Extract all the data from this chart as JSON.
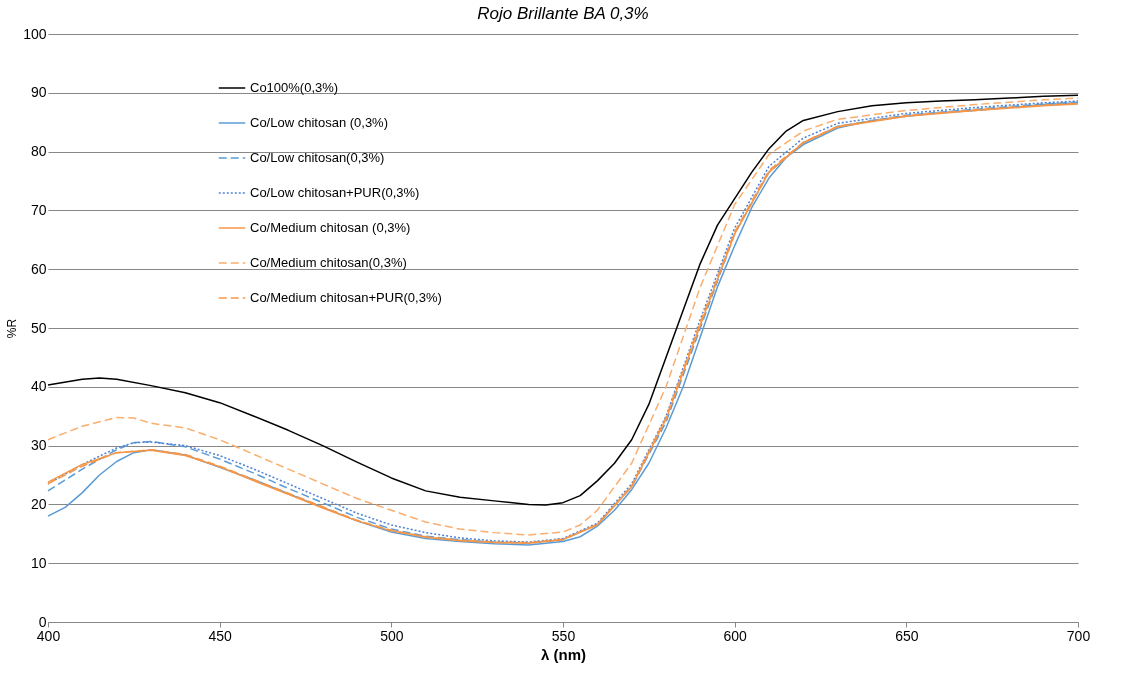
{
  "chart_data": {
    "type": "line",
    "title": "Rojo Brillante BA 0,3%",
    "xlabel": "λ (nm)",
    "ylabel": "%R",
    "xlim": [
      400,
      700
    ],
    "xticks": [
      400,
      450,
      500,
      550,
      600,
      650,
      700
    ],
    "ylim": [
      0,
      100
    ],
    "yticks": [
      0,
      10,
      20,
      30,
      40,
      50,
      60,
      70,
      80,
      90,
      100
    ],
    "grid": "y",
    "legend": "top left",
    "marker": "none",
    "series": [
      {
        "name": "Co100%(0,3%)",
        "color": "#000000",
        "line_style": "solid",
        "x": [
          400,
          410,
          415,
          420,
          430,
          440,
          450,
          460,
          470,
          480,
          490,
          500,
          510,
          520,
          530,
          540,
          545,
          550,
          555,
          560,
          565,
          570,
          575,
          580,
          585,
          590,
          595,
          600,
          605,
          610,
          615,
          620,
          630,
          640,
          650,
          660,
          670,
          680,
          690,
          700
        ],
        "values": [
          40.3,
          41.3,
          41.5,
          41.3,
          40.2,
          39,
          37.3,
          35,
          32.6,
          30,
          27.2,
          24.5,
          22.3,
          21.2,
          20.6,
          20,
          19.9,
          20.3,
          21.5,
          24,
          27,
          31,
          37,
          45,
          53,
          61,
          67.5,
          72,
          76.5,
          80.5,
          83.5,
          85.3,
          86.8,
          87.8,
          88.3,
          88.6,
          88.8,
          89.1,
          89.4,
          89.6
        ]
      },
      {
        "name": "Co/Low chitosan (0,3%)",
        "color": "#5b9bd5",
        "line_style": "solid",
        "x": [
          400,
          405,
          410,
          415,
          420,
          425,
          430,
          440,
          450,
          460,
          470,
          480,
          490,
          500,
          510,
          520,
          530,
          540,
          550,
          555,
          560,
          565,
          570,
          575,
          580,
          585,
          590,
          595,
          600,
          605,
          610,
          615,
          620,
          630,
          640,
          650,
          660,
          670,
          680,
          690,
          700
        ],
        "values": [
          18,
          19.5,
          22,
          25,
          27.3,
          28.8,
          29.3,
          28.4,
          26.3,
          24.2,
          21.8,
          19.5,
          17.2,
          15.3,
          14.2,
          13.7,
          13.3,
          13.1,
          13.7,
          14.5,
          16.3,
          19,
          22.5,
          27,
          33,
          40,
          48.5,
          57,
          64,
          70.5,
          75.5,
          79,
          81.2,
          84,
          85.3,
          86,
          86.6,
          87,
          87.5,
          88,
          88.3
        ]
      },
      {
        "name": "Co/Low chitosan(0,3%)",
        "color": "#5b9bd5",
        "line_style": "dashed",
        "x": [
          400,
          410,
          420,
          425,
          430,
          440,
          450,
          460,
          470,
          480,
          490,
          500,
          510,
          520,
          530,
          540,
          550,
          560,
          570,
          580,
          590,
          600,
          610,
          620,
          630,
          650,
          670,
          690,
          700
        ],
        "values": [
          22.3,
          26,
          29.3,
          30.5,
          30.7,
          29.8,
          27.7,
          25.3,
          22.7,
          20.3,
          17.8,
          15.8,
          14.6,
          14,
          13.6,
          13.4,
          14,
          16.6,
          23,
          34,
          50,
          66,
          76.5,
          81.5,
          84.3,
          86.2,
          87.2,
          88.1,
          88.4
        ]
      },
      {
        "name": "Co/Low chitosan+PUR(0,3%)",
        "color": "#4f81d4",
        "line_style": "dotted",
        "x": [
          400,
          410,
          420,
          425,
          430,
          440,
          450,
          460,
          470,
          480,
          490,
          500,
          510,
          520,
          530,
          540,
          550,
          560,
          570,
          580,
          590,
          600,
          610,
          620,
          630,
          650,
          670,
          690,
          700
        ],
        "values": [
          23.5,
          26.8,
          29.6,
          30.5,
          30.6,
          30,
          28.3,
          26,
          23.5,
          21,
          18.5,
          16.5,
          15.2,
          14.3,
          13.8,
          13.6,
          14.2,
          16.8,
          23.5,
          35,
          51.5,
          67,
          77.5,
          82.3,
          84.8,
          86.5,
          87.5,
          88.3,
          88.6
        ]
      },
      {
        "name": "Co/Medium chitosan (0,3%)",
        "color": "#f79646",
        "line_style": "solid",
        "x": [
          400,
          410,
          420,
          430,
          440,
          450,
          460,
          470,
          480,
          490,
          500,
          510,
          520,
          530,
          540,
          550,
          560,
          570,
          580,
          590,
          600,
          610,
          620,
          630,
          650,
          670,
          690,
          700
        ],
        "values": [
          23.8,
          26.8,
          28.8,
          29.2,
          28.3,
          26.4,
          24,
          21.7,
          19.4,
          17.2,
          15.5,
          14.4,
          13.8,
          13.5,
          13.4,
          14,
          16.5,
          23,
          34.5,
          50.5,
          66,
          76.5,
          81.5,
          84.2,
          86,
          87,
          87.8,
          88.1
        ]
      },
      {
        "name": "Co/Medium chitosan(0,3%)",
        "color": "#f9ae6e",
        "line_style": "dashed",
        "x": [
          400,
          410,
          420,
          425,
          430,
          440,
          450,
          460,
          470,
          480,
          490,
          500,
          510,
          520,
          530,
          540,
          550,
          555,
          560,
          570,
          580,
          590,
          600,
          610,
          620,
          630,
          650,
          670,
          690,
          700
        ],
        "values": [
          31,
          33.3,
          34.8,
          34.7,
          33.8,
          33,
          31,
          28.5,
          26,
          23.5,
          21,
          19,
          17,
          15.8,
          15.2,
          14.8,
          15.3,
          16.5,
          19,
          27,
          40,
          57,
          71,
          79.5,
          83.5,
          85.5,
          87,
          88,
          88.8,
          89.1
        ]
      },
      {
        "name": "Co/Medium chitosan+PUR(0,3%)",
        "color": "#f79646",
        "line_style": "dashed",
        "x": [
          400,
          410,
          420,
          430,
          440,
          450,
          460,
          470,
          480,
          490,
          500,
          510,
          520,
          530,
          540,
          550,
          560,
          570,
          580,
          590,
          600,
          610,
          620,
          630,
          650,
          670,
          690,
          700
        ],
        "values": [
          23.5,
          26.5,
          28.8,
          29.3,
          28.5,
          26.5,
          24.2,
          21.9,
          19.6,
          17.3,
          15.6,
          14.5,
          13.9,
          13.6,
          13.5,
          14.1,
          16.6,
          23.2,
          34.8,
          51,
          66.3,
          76.8,
          81.6,
          84.3,
          86.1,
          87.1,
          87.9,
          88.2
        ]
      }
    ]
  }
}
